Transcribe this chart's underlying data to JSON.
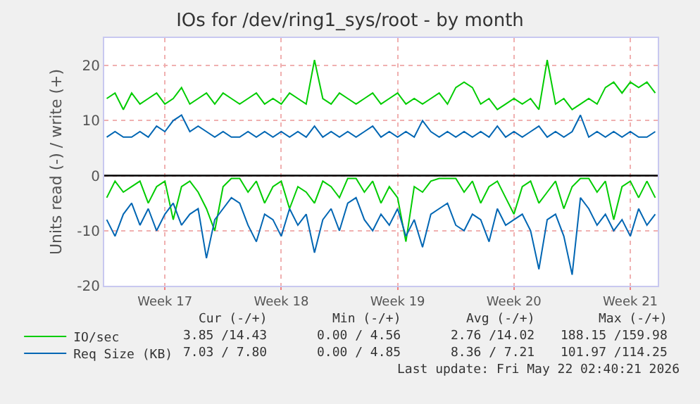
{
  "chart_data": {
    "type": "line",
    "title": "IOs for /dev/ring1_sys/root - by month",
    "ylabel": "Units read (-) / write (+)",
    "categories": [
      null,
      null,
      null,
      null,
      null,
      null,
      null,
      "Week 17",
      null,
      null,
      null,
      null,
      null,
      null,
      null,
      null,
      null,
      null,
      null,
      null,
      null,
      "Week 18",
      null,
      null,
      null,
      null,
      null,
      null,
      null,
      null,
      null,
      null,
      null,
      null,
      null,
      "Week 19",
      null,
      null,
      null,
      null,
      null,
      null,
      null,
      null,
      null,
      null,
      null,
      null,
      null,
      "Week 20",
      null,
      null,
      null,
      null,
      null,
      null,
      null,
      null,
      null,
      null,
      null,
      null,
      null,
      "Week 21",
      null,
      null,
      null
    ],
    "series": [
      {
        "name": "IO/sec",
        "color": "#00cc00",
        "values": [
          14,
          15,
          12,
          15,
          13,
          14,
          15,
          13,
          14,
          16,
          13,
          14,
          15,
          13,
          15,
          14,
          13,
          14,
          15,
          13,
          14,
          13,
          15,
          14,
          13,
          21,
          14,
          13,
          15,
          14,
          13,
          14,
          15,
          13,
          14,
          15,
          13,
          14,
          13,
          14,
          15,
          13,
          16,
          17,
          16,
          13,
          14,
          12,
          13,
          14,
          13,
          14,
          12,
          21,
          13,
          14,
          12,
          13,
          14,
          13,
          16,
          17,
          15,
          17,
          16,
          17,
          15
        ]
      },
      {
        "color": "#00cc00",
        "values": [
          -4,
          -1,
          -3,
          -2,
          -1,
          -5,
          -2,
          -1,
          -8,
          -2,
          -1,
          -3,
          -6,
          -10,
          -2,
          -0.5,
          -0.5,
          -3,
          -1,
          -5,
          -2,
          -1,
          -6,
          -2,
          -3,
          -5,
          -1,
          -2,
          -4,
          -0.5,
          -0.5,
          -3,
          -1,
          -5,
          -2,
          -4,
          -12,
          -2,
          -3,
          -1,
          -0.5,
          -0.5,
          -0.5,
          -3,
          -1,
          -5,
          -2,
          -1,
          -4,
          -7,
          -2,
          -1,
          -5,
          -3,
          -1,
          -6,
          -2,
          -0.5,
          -0.5,
          -3,
          -1,
          -8,
          -2,
          -1,
          -4,
          -1,
          -4
        ]
      },
      {
        "name": "Req Size (KB)",
        "color": "#0066b3",
        "values": [
          7,
          8,
          7,
          7,
          8,
          7,
          9,
          8,
          10,
          11,
          8,
          9,
          8,
          7,
          8,
          7,
          7,
          8,
          7,
          8,
          7,
          8,
          7,
          8,
          7,
          9,
          7,
          8,
          7,
          8,
          7,
          8,
          9,
          7,
          8,
          7,
          8,
          7,
          10,
          8,
          7,
          8,
          7,
          8,
          7,
          8,
          7,
          9,
          7,
          8,
          7,
          8,
          9,
          7,
          8,
          7,
          8,
          11,
          7,
          8,
          7,
          8,
          7,
          8,
          7,
          7,
          8
        ]
      },
      {
        "color": "#0066b3",
        "values": [
          -8,
          -11,
          -7,
          -5,
          -9,
          -6,
          -10,
          -7,
          -5,
          -9,
          -7,
          -6,
          -15,
          -8,
          -6,
          -4,
          -5,
          -9,
          -12,
          -7,
          -8,
          -11,
          -6,
          -9,
          -7,
          -14,
          -8,
          -6,
          -10,
          -5,
          -4,
          -8,
          -10,
          -7,
          -9,
          -6,
          -11,
          -8,
          -13,
          -7,
          -6,
          -5,
          -9,
          -10,
          -7,
          -8,
          -12,
          -6,
          -9,
          -8,
          -7,
          -10,
          -17,
          -8,
          -7,
          -11,
          -18,
          -4,
          -6,
          -9,
          -7,
          -10,
          -8,
          -11,
          -6,
          -9,
          -7
        ]
      }
    ],
    "ylim": [
      -20,
      25
    ],
    "yticks": [
      -20,
      -10,
      0,
      10,
      20
    ],
    "ref_lines": [
      {
        "axis": "y",
        "value": 0,
        "color": "#000000"
      }
    ],
    "grid": true,
    "legend": "bottom left",
    "marker": "none",
    "line_style": "solid",
    "annotations": [
      "Cur (-/+)",
      "Min (-/+)",
      "Avg (-/+)",
      "Max (-/+)",
      "3.85 /14.43",
      "0.00 / 4.56",
      "2.76 /14.02",
      "188.15 /159.98",
      "7.03 / 7.80",
      "0.00 / 4.85",
      "8.36 / 7.21",
      "101.97 /114.25",
      "Last update: Fri May 22 02:40:21 2026"
    ]
  }
}
